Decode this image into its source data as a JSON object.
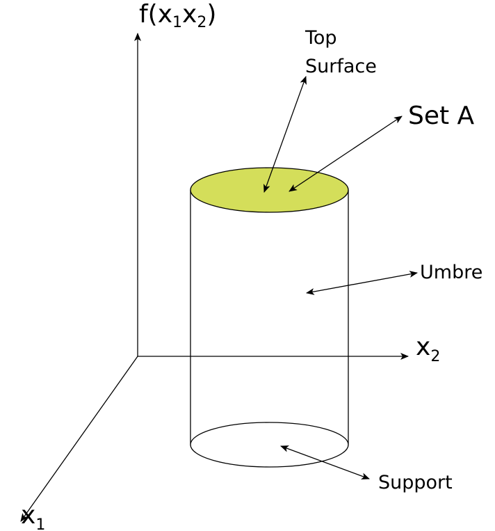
{
  "axes": {
    "vertical_label": {
      "prefix": "f(x",
      "sub1": "1",
      "mid": "x",
      "sub2": "2",
      "suffix": ")"
    },
    "x2_label": {
      "base": "x",
      "sub": "2"
    },
    "x1_label": {
      "base": "x",
      "sub": "1"
    }
  },
  "labels": {
    "top_surface_line1": "Top",
    "top_surface_line2": "Surface",
    "set_a": "Set A",
    "umbre": "Umbre",
    "support": "Support"
  },
  "colors": {
    "top_surface_fill": "#d4de5a",
    "stroke": "#000000",
    "background": "#ffffff"
  }
}
